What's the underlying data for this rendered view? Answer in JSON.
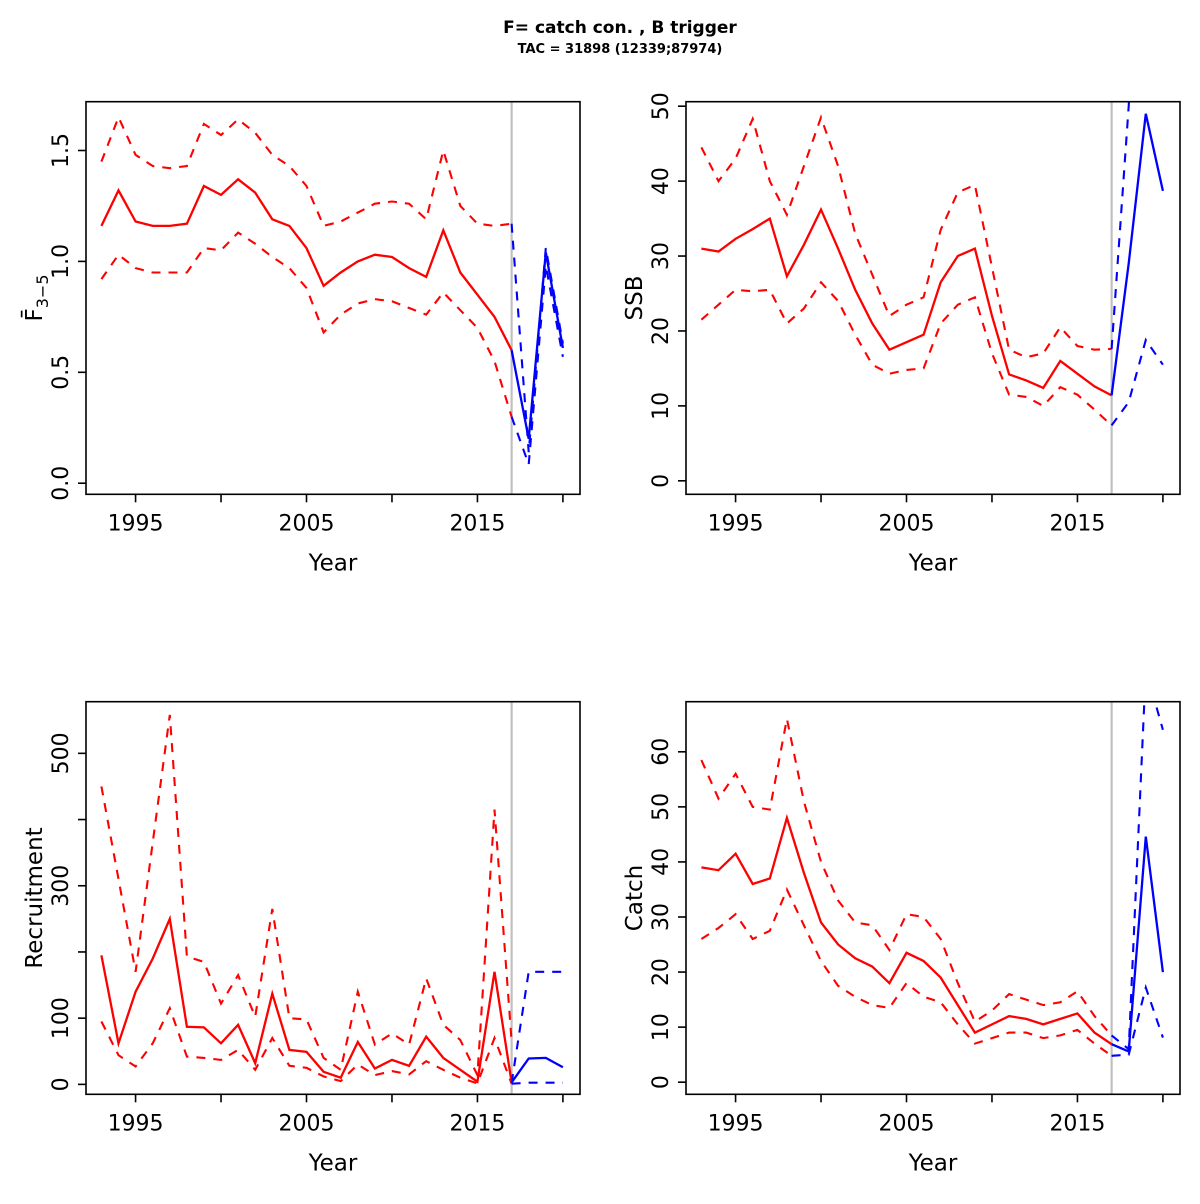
{
  "header": {
    "title": "F= catch con. , B trigger",
    "subtitle": "TAC = 31898 (12339;87974)"
  },
  "colors": {
    "historic": "#ff0000",
    "forecast": "#0000ff",
    "divider": "#c0c0c0",
    "axis": "#000000",
    "background": "#ffffff"
  },
  "divider_year": 2017,
  "xaxis": {
    "label": "Year",
    "xlim": [
      1992.1,
      2021.0
    ],
    "ticks": [
      1995,
      2000,
      2005,
      2010,
      2015,
      2020
    ],
    "tick_labels": [
      "1995",
      "",
      "2005",
      "",
      "2015",
      ""
    ]
  },
  "chart_data": [
    {
      "id": "f",
      "type": "line",
      "ylabel_main": "F̄",
      "ylabel_sub": "3−5",
      "ylim": [
        -0.05,
        1.72
      ],
      "yticks": [
        0.0,
        0.5,
        1.0,
        1.5
      ],
      "ytick_labels": [
        "0.0",
        "0.5",
        "1.0",
        "1.5"
      ],
      "series": [
        {
          "name": "historic-median",
          "style": "solid",
          "color_key": "historic",
          "years": [
            1993,
            1994,
            1995,
            1996,
            1997,
            1998,
            1999,
            2000,
            2001,
            2002,
            2003,
            2004,
            2005,
            2006,
            2007,
            2008,
            2009,
            2010,
            2011,
            2012,
            2013,
            2014,
            2015,
            2016,
            2017
          ],
          "values": [
            1.16,
            1.32,
            1.18,
            1.16,
            1.16,
            1.17,
            1.34,
            1.3,
            1.37,
            1.31,
            1.19,
            1.16,
            1.06,
            0.89,
            0.95,
            1.0,
            1.03,
            1.02,
            0.97,
            0.93,
            1.14,
            0.95,
            0.85,
            0.75,
            0.6
          ]
        },
        {
          "name": "historic-upper",
          "style": "dashed",
          "color_key": "historic",
          "years": [
            1993,
            1994,
            1995,
            1996,
            1997,
            1998,
            1999,
            2000,
            2001,
            2002,
            2003,
            2004,
            2005,
            2006,
            2007,
            2008,
            2009,
            2010,
            2011,
            2012,
            2013,
            2014,
            2015,
            2016,
            2017
          ],
          "values": [
            1.45,
            1.65,
            1.48,
            1.43,
            1.42,
            1.43,
            1.62,
            1.57,
            1.64,
            1.58,
            1.48,
            1.43,
            1.34,
            1.16,
            1.18,
            1.22,
            1.26,
            1.27,
            1.26,
            1.19,
            1.5,
            1.25,
            1.17,
            1.16,
            1.17
          ]
        },
        {
          "name": "historic-lower",
          "style": "dashed",
          "color_key": "historic",
          "years": [
            1993,
            1994,
            1995,
            1996,
            1997,
            1998,
            1999,
            2000,
            2001,
            2002,
            2003,
            2004,
            2005,
            2006,
            2007,
            2008,
            2009,
            2010,
            2011,
            2012,
            2013,
            2014,
            2015,
            2016,
            2017
          ],
          "values": [
            0.92,
            1.03,
            0.97,
            0.95,
            0.95,
            0.95,
            1.06,
            1.05,
            1.13,
            1.08,
            1.02,
            0.97,
            0.88,
            0.68,
            0.76,
            0.81,
            0.83,
            0.82,
            0.79,
            0.76,
            0.86,
            0.78,
            0.7,
            0.55,
            0.3
          ]
        },
        {
          "name": "forecast-median",
          "style": "solid",
          "color_key": "forecast",
          "years": [
            2017,
            2018,
            2019,
            2020
          ],
          "values": [
            0.6,
            0.2,
            1.04,
            0.61
          ]
        },
        {
          "name": "forecast-upper",
          "style": "dashed",
          "color_key": "forecast",
          "years": [
            2017,
            2018,
            2019,
            2020
          ],
          "values": [
            1.17,
            0.14,
            1.06,
            0.63
          ]
        },
        {
          "name": "forecast-lower",
          "style": "dashed",
          "color_key": "forecast",
          "years": [
            2017,
            2018,
            2019,
            2020
          ],
          "values": [
            0.3,
            0.085,
            0.98,
            0.57
          ]
        }
      ]
    },
    {
      "id": "ssb",
      "type": "line",
      "ylabel_main": "SSB",
      "ylabel_sub": "",
      "ylim": [
        -1.8,
        50.6
      ],
      "yticks": [
        0,
        10,
        20,
        30,
        40,
        50
      ],
      "ytick_labels": [
        "0",
        "10",
        "20",
        "30",
        "40",
        "50"
      ],
      "series": [
        {
          "name": "historic-median",
          "style": "solid",
          "color_key": "historic",
          "years": [
            1993,
            1994,
            1995,
            1996,
            1997,
            1998,
            1999,
            2000,
            2001,
            2002,
            2003,
            2004,
            2005,
            2006,
            2007,
            2008,
            2009,
            2010,
            2011,
            2012,
            2013,
            2014,
            2015,
            2016,
            2017
          ],
          "values": [
            31.0,
            30.6,
            32.3,
            33.6,
            35.0,
            27.3,
            31.5,
            36.2,
            31.0,
            25.5,
            21.0,
            17.5,
            18.5,
            19.5,
            26.5,
            30.0,
            31.0,
            22.0,
            14.2,
            13.4,
            12.4,
            16.0,
            14.3,
            12.6,
            11.4
          ]
        },
        {
          "name": "historic-upper",
          "style": "dashed",
          "color_key": "historic",
          "years": [
            1993,
            1994,
            1995,
            1996,
            1997,
            1998,
            1999,
            2000,
            2001,
            2002,
            2003,
            2004,
            2005,
            2006,
            2007,
            2008,
            2009,
            2010,
            2011,
            2012,
            2013,
            2014,
            2015,
            2016,
            2017
          ],
          "values": [
            44.5,
            40.0,
            43.0,
            48.3,
            40.0,
            35.5,
            42.0,
            48.5,
            42.0,
            33.0,
            27.5,
            22.0,
            23.5,
            24.5,
            33.5,
            38.5,
            39.5,
            28.5,
            17.5,
            16.5,
            17.0,
            20.5,
            18.0,
            17.5,
            17.6
          ]
        },
        {
          "name": "historic-lower",
          "style": "dashed",
          "color_key": "historic",
          "years": [
            1993,
            1994,
            1995,
            1996,
            1997,
            1998,
            1999,
            2000,
            2001,
            2002,
            2003,
            2004,
            2005,
            2006,
            2007,
            2008,
            2009,
            2010,
            2011,
            2012,
            2013,
            2014,
            2015,
            2016,
            2017
          ],
          "values": [
            21.5,
            23.5,
            25.5,
            25.3,
            25.5,
            21.0,
            23.0,
            26.5,
            24.0,
            19.5,
            15.5,
            14.3,
            14.8,
            15.0,
            21.0,
            23.5,
            24.5,
            17.0,
            11.5,
            11.2,
            10.0,
            12.5,
            11.5,
            9.5,
            7.4
          ]
        },
        {
          "name": "forecast-median",
          "style": "solid",
          "color_key": "forecast",
          "years": [
            2017,
            2018,
            2019,
            2020
          ],
          "values": [
            11.4,
            29.0,
            49.0,
            38.7
          ]
        },
        {
          "name": "forecast-upper",
          "style": "dashed",
          "color_key": "forecast",
          "years": [
            2017,
            2018,
            2019,
            2020
          ],
          "values": [
            17.6,
            50.0,
            95.0,
            75.0
          ]
        },
        {
          "name": "forecast-lower",
          "style": "dashed",
          "color_key": "forecast",
          "years": [
            2017,
            2018,
            2019,
            2020
          ],
          "values": [
            7.4,
            10.5,
            18.8,
            15.5
          ]
        }
      ]
    },
    {
      "id": "recruitment",
      "type": "line",
      "ylabel_main": "Recruitment",
      "ylabel_sub": "",
      "ylim": [
        -15,
        578
      ],
      "yticks": [
        0,
        100,
        200,
        300,
        400,
        500
      ],
      "ytick_labels": [
        "0",
        "100",
        "",
        "300",
        "",
        "500"
      ],
      "series": [
        {
          "name": "historic-median",
          "style": "solid",
          "color_key": "historic",
          "years": [
            1993,
            1994,
            1995,
            1996,
            1997,
            1998,
            1999,
            2000,
            2001,
            2002,
            2003,
            2004,
            2005,
            2006,
            2007,
            2008,
            2009,
            2010,
            2011,
            2012,
            2013,
            2014,
            2015,
            2016,
            2017
          ],
          "values": [
            195,
            62,
            140,
            190,
            250,
            87,
            86,
            62,
            90,
            32,
            137,
            52,
            49,
            19,
            10,
            64,
            24,
            37,
            28,
            72,
            40,
            22,
            4,
            170,
            3
          ]
        },
        {
          "name": "historic-upper",
          "style": "dashed",
          "color_key": "historic",
          "years": [
            1993,
            1994,
            1995,
            1996,
            1997,
            1998,
            1999,
            2000,
            2001,
            2002,
            2003,
            2004,
            2005,
            2006,
            2007,
            2008,
            2009,
            2010,
            2011,
            2012,
            2013,
            2014,
            2015,
            2016,
            2017
          ],
          "values": [
            450,
            310,
            170,
            365,
            558,
            193,
            185,
            122,
            165,
            102,
            265,
            100,
            98,
            40,
            22,
            140,
            60,
            77,
            60,
            160,
            90,
            67,
            14,
            415,
            65
          ]
        },
        {
          "name": "historic-lower",
          "style": "dashed",
          "color_key": "historic",
          "years": [
            1993,
            1994,
            1995,
            1996,
            1997,
            1998,
            1999,
            2000,
            2001,
            2002,
            2003,
            2004,
            2005,
            2006,
            2007,
            2008,
            2009,
            2010,
            2011,
            2012,
            2013,
            2014,
            2015,
            2016,
            2017
          ],
          "values": [
            95,
            44,
            27,
            62,
            115,
            42,
            40,
            37,
            52,
            22,
            70,
            28,
            25,
            12,
            5,
            30,
            14,
            20,
            15,
            35,
            22,
            10,
            1.5,
            70,
            1
          ]
        },
        {
          "name": "forecast-median",
          "style": "solid",
          "color_key": "forecast",
          "years": [
            2017,
            2018,
            2019,
            2020
          ],
          "values": [
            3,
            39,
            40,
            26
          ]
        },
        {
          "name": "forecast-upper",
          "style": "dashed",
          "color_key": "forecast",
          "years": [
            2017,
            2018,
            2019,
            2020
          ],
          "values": [
            2,
            170,
            170,
            170
          ]
        },
        {
          "name": "forecast-lower",
          "style": "dashed",
          "color_key": "forecast",
          "years": [
            2017,
            2018,
            2019,
            2020
          ],
          "values": [
            1,
            2.5,
            2.5,
            2.5
          ]
        }
      ]
    },
    {
      "id": "catch",
      "type": "line",
      "ylabel_main": "Catch",
      "ylabel_sub": "",
      "ylim": [
        -2.2,
        69.1
      ],
      "yticks": [
        0,
        10,
        20,
        30,
        40,
        50,
        60
      ],
      "ytick_labels": [
        "0",
        "10",
        "20",
        "30",
        "40",
        "50",
        "60"
      ],
      "series": [
        {
          "name": "historic-median",
          "style": "solid",
          "color_key": "historic",
          "years": [
            1993,
            1994,
            1995,
            1996,
            1997,
            1998,
            1999,
            2000,
            2001,
            2002,
            2003,
            2004,
            2005,
            2006,
            2007,
            2008,
            2009,
            2010,
            2011,
            2012,
            2013,
            2014,
            2015,
            2016,
            2017
          ],
          "values": [
            39,
            38.5,
            41.5,
            36,
            37,
            48,
            38,
            29,
            25,
            22.5,
            21,
            18,
            23.5,
            22,
            19,
            14,
            9,
            10.5,
            12,
            11.5,
            10.5,
            11.5,
            12.5,
            9,
            6.9
          ]
        },
        {
          "name": "historic-upper",
          "style": "dashed",
          "color_key": "historic",
          "years": [
            1993,
            1994,
            1995,
            1996,
            1997,
            1998,
            1999,
            2000,
            2001,
            2002,
            2003,
            2004,
            2005,
            2006,
            2007,
            2008,
            2009,
            2010,
            2011,
            2012,
            2013,
            2014,
            2015,
            2016,
            2017
          ],
          "values": [
            58.5,
            51.5,
            56,
            50,
            49.5,
            66,
            51,
            40,
            33,
            29,
            28.5,
            24,
            30.5,
            30,
            26,
            18,
            11,
            13,
            16,
            15,
            14,
            14.5,
            16.5,
            12,
            8.5
          ]
        },
        {
          "name": "historic-lower",
          "style": "dashed",
          "color_key": "historic",
          "years": [
            1993,
            1994,
            1995,
            1996,
            1997,
            1998,
            1999,
            2000,
            2001,
            2002,
            2003,
            2004,
            2005,
            2006,
            2007,
            2008,
            2009,
            2010,
            2011,
            2012,
            2013,
            2014,
            2015,
            2016,
            2017
          ],
          "values": [
            26,
            28,
            30.5,
            26,
            27.5,
            35,
            28.5,
            22,
            17.5,
            15.5,
            14,
            13.5,
            18,
            15.5,
            14.5,
            10.5,
            7,
            8,
            9,
            9,
            8,
            8.5,
            9.5,
            7,
            4.8
          ]
        },
        {
          "name": "forecast-median",
          "style": "solid",
          "color_key": "forecast",
          "years": [
            2017,
            2018,
            2019,
            2020
          ],
          "values": [
            6.9,
            5.6,
            44.6,
            20
          ]
        },
        {
          "name": "forecast-upper",
          "style": "dashed",
          "color_key": "forecast",
          "years": [
            2017,
            2018,
            2019,
            2020
          ],
          "values": [
            8.5,
            6,
            75,
            64
          ]
        },
        {
          "name": "forecast-lower",
          "style": "dashed",
          "color_key": "forecast",
          "years": [
            2017,
            2018,
            2019,
            2020
          ],
          "values": [
            4.8,
            5,
            17.2,
            8.1
          ]
        }
      ]
    }
  ]
}
